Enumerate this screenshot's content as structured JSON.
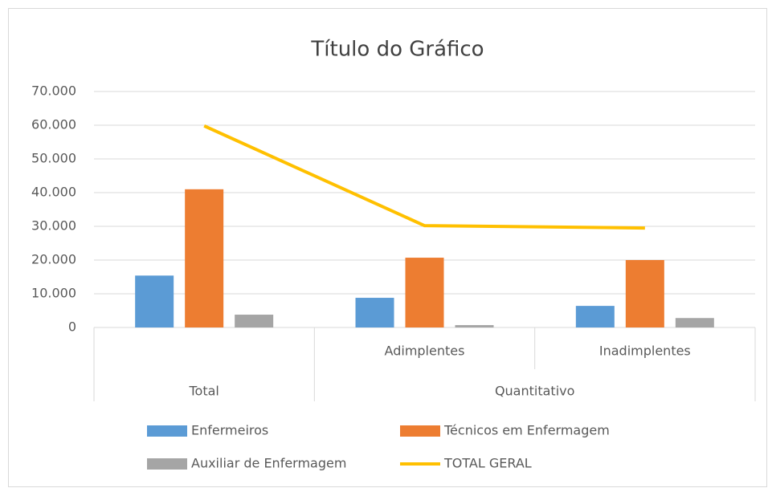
{
  "chart_data": {
    "type": "bar",
    "title": "Título do Gráfico",
    "categories": [
      null,
      "Adimplentes",
      "Inadimplentes"
    ],
    "category_groups": [
      "Total",
      "Quantitativo",
      "Quantitativo"
    ],
    "ylim": [
      0,
      70000
    ],
    "yticks": [
      0,
      {
        "value": 10000,
        "label": "10.000"
      },
      {
        "value": 20000,
        "label": "20.000"
      },
      {
        "value": 30000,
        "label": "30.000"
      },
      {
        "value": 40000,
        "label": "40.000"
      },
      {
        "value": 50000,
        "label": "50.000"
      },
      {
        "value": 60000,
        "label": "60.000"
      },
      {
        "value": 70000,
        "label": "70.000"
      }
    ],
    "grid": true,
    "legend": "bottom",
    "series": [
      {
        "name": "Enfermeiros",
        "color": "#5b9bd5",
        "type": "bar",
        "values": [
          15400,
          8800,
          6400
        ]
      },
      {
        "name": "Técnicos em Enfermagem",
        "color": "#ed7d31",
        "type": "bar",
        "values": [
          41000,
          20700,
          20000
        ]
      },
      {
        "name": "Auxiliar de Enfermagem",
        "color": "#a5a5a5",
        "type": "bar",
        "values": [
          3800,
          700,
          2800
        ]
      },
      {
        "name": "TOTAL GERAL",
        "color": "#ffc000",
        "type": "line",
        "values": [
          59800,
          30200,
          29500
        ]
      }
    ]
  }
}
